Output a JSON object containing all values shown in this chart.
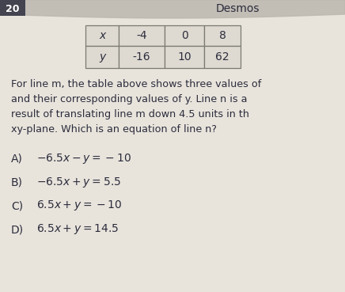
{
  "title": "Desmos",
  "question_number": "20",
  "table_headers": [
    "x",
    "-4",
    "0",
    "8"
  ],
  "table_row2": [
    "y",
    "-16",
    "10",
    "62"
  ],
  "paragraph_lines": [
    "For line m, the table above shows three values of",
    "and their corresponding values of y. Line n is a",
    "result of translating line m down 4.5 units in th",
    "xy-plane. Which is an equation of line n?"
  ],
  "choices": [
    {
      "label": "A)",
      "expr": "-6.5x – y = −10"
    },
    {
      "label": "B)",
      "expr": "-6.5x + y = 5.5"
    },
    {
      "label": "C)",
      "expr": "6.5x + y = −10"
    },
    {
      "label": "D)",
      "expr": "6.5x + y = 14.5"
    }
  ],
  "bg_light": "#e8e4dc",
  "bg_main": "#d4cec4",
  "header_bg": "#bcb8b0",
  "text_color": "#2c2c3c",
  "table_border": "#7a7a70",
  "num_box_bg": "#444450",
  "num_box_text": "#ffffff",
  "header_curve_color": "#c0bbb2"
}
